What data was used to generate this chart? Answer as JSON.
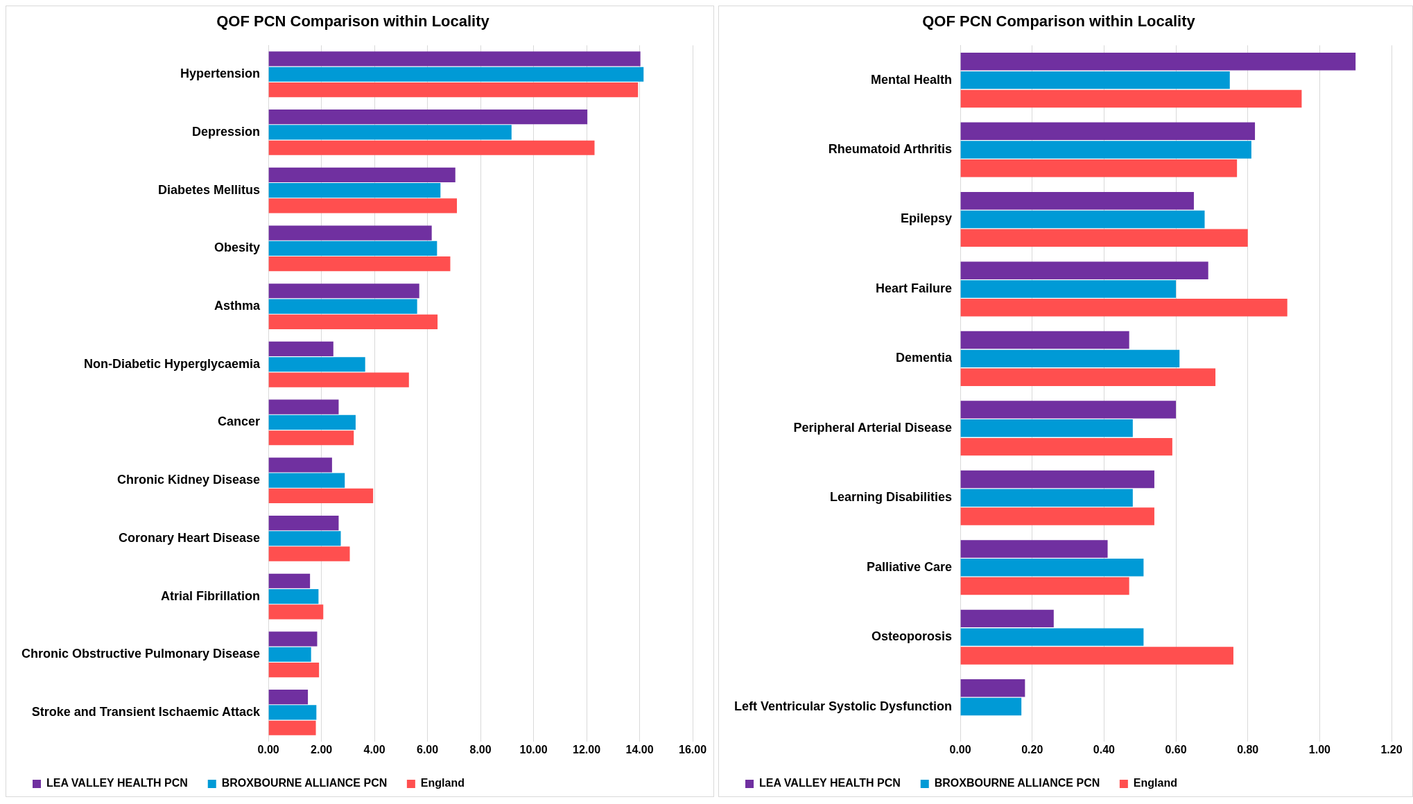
{
  "chart_data": [
    {
      "type": "bar",
      "orientation": "horizontal",
      "title": "QOF PCN Comparison within Locality",
      "categories": [
        "Hypertension",
        "Depression",
        "Diabetes Mellitus",
        "Obesity",
        "Asthma",
        "Non-Diabetic Hyperglycaemia",
        "Cancer",
        "Chronic Kidney Disease",
        "Coronary Heart Disease",
        "Atrial Fibrillation",
        "Chronic Obstructive Pulmonary Disease",
        "Stroke and Transient Ischaemic Attack"
      ],
      "series": [
        {
          "name": "LEA VALLEY HEALTH PCN",
          "color": "#7030a0",
          "values": [
            14.03,
            12.03,
            7.05,
            6.16,
            5.69,
            2.45,
            2.65,
            2.4,
            2.65,
            1.57,
            1.84,
            1.49
          ]
        },
        {
          "name": "BROXBOURNE ALLIANCE PCN",
          "color": "#009ad6",
          "values": [
            14.15,
            9.17,
            6.49,
            6.36,
            5.61,
            3.65,
            3.29,
            2.88,
            2.73,
            1.89,
            1.61,
            1.81
          ]
        },
        {
          "name": "England",
          "color": "#ff4f4f",
          "values": [
            13.94,
            12.3,
            7.11,
            6.86,
            6.38,
            5.3,
            3.22,
            3.95,
            3.07,
            2.07,
            1.91,
            1.79
          ]
        }
      ],
      "xlim": [
        0,
        16
      ],
      "xticks": [
        {
          "value": 0,
          "label": "0.00"
        },
        {
          "value": 2,
          "label": "2.00"
        },
        {
          "value": 4,
          "label": "4.00"
        },
        {
          "value": 6,
          "label": "6.00"
        },
        {
          "value": 8,
          "label": "8.00"
        },
        {
          "value": 10,
          "label": "10.00"
        },
        {
          "value": 12,
          "label": "12.00"
        },
        {
          "value": 14,
          "label": "14.00"
        },
        {
          "value": 16,
          "label": "16.00"
        }
      ],
      "grid": "x",
      "legend": "bottom"
    },
    {
      "type": "bar",
      "orientation": "horizontal",
      "title": "QOF PCN Comparison within Locality",
      "categories": [
        "Mental Health",
        "Rheumatoid Arthritis",
        "Epilepsy",
        "Heart Failure",
        "Dementia",
        "Peripheral Arterial Disease",
        "Learning Disabilities",
        "Palliative Care",
        "Osteoporosis",
        "Left Ventricular Systolic Dysfunction"
      ],
      "series": [
        {
          "name": "LEA VALLEY HEALTH PCN",
          "color": "#7030a0",
          "values": [
            1.1,
            0.82,
            0.65,
            0.69,
            0.47,
            0.6,
            0.54,
            0.41,
            0.26,
            0.18
          ]
        },
        {
          "name": "BROXBOURNE ALLIANCE PCN",
          "color": "#009ad6",
          "values": [
            0.75,
            0.81,
            0.68,
            0.6,
            0.61,
            0.48,
            0.48,
            0.51,
            0.51,
            0.17
          ]
        },
        {
          "name": "England",
          "color": "#ff4f4f",
          "values": [
            0.95,
            0.77,
            0.8,
            0.91,
            0.71,
            0.59,
            0.54,
            0.47,
            0.76,
            null
          ]
        }
      ],
      "xlim": [
        0,
        1.2
      ],
      "xticks": [
        {
          "value": 0,
          "label": "0.00"
        },
        {
          "value": 0.2,
          "label": "0.20"
        },
        {
          "value": 0.4,
          "label": "0.40"
        },
        {
          "value": 0.6,
          "label": "0.60"
        },
        {
          "value": 0.8,
          "label": "0.80"
        },
        {
          "value": 1,
          "label": "1.00"
        },
        {
          "value": 1.2,
          "label": "1.20"
        }
      ],
      "grid": "x",
      "legend": "bottom"
    }
  ]
}
